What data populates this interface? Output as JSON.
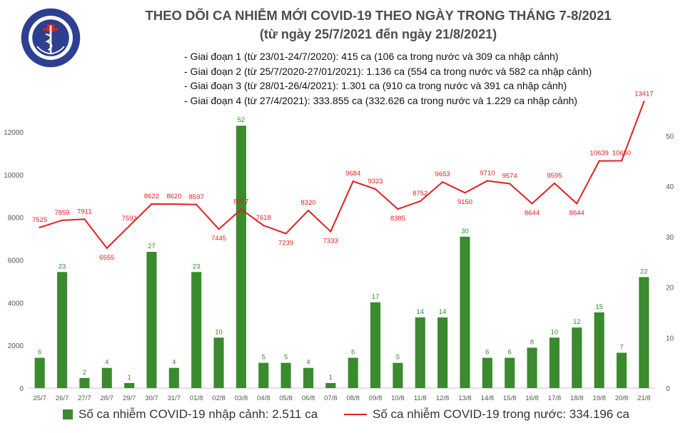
{
  "logo": {
    "top_text": "BỘ Y TẾ",
    "bottom_text": "MINISTRY OF HEALTH"
  },
  "title": "THEO DÕI CA NHIỄM MỚI COVID-19 THEO NGÀY TRONG THÁNG 7-8/2021",
  "subtitle": "(từ ngày 25/7/2021 đến ngày 21/8/2021)",
  "notes": [
    "- Giai đoạn 1 (từ 23/01-24/7/2020): 415 ca (106 ca trong nước và 309 ca nhập cảnh)",
    "- Giai đoạn 2 (từ 25/7/2020-27/01/2021): 1.136 ca (554 ca trong nước và 582 ca nhập cảnh)",
    "- Giai đoạn 3 (từ 28/01-26/4/2021): 1.301 ca (910 ca trong nước và 391 ca nhập cảnh)",
    "- Giai đoạn 4 (từ 27/4/2021): 333.855 ca (332.626 ca trong nước và 1.229 ca nhập cảnh)"
  ],
  "legend": {
    "bar": "Số ca nhiễm COVID-19 nhập cảnh: 2.511 ca",
    "line": "Số ca nhiễm COVID-19 trong nước: 334.196 ca"
  },
  "colors": {
    "bar": "#3a8a2e",
    "line": "#e02020",
    "bar_label": "#2e8b2e",
    "line_label": "#e02020",
    "axis_text": "#555555"
  },
  "chart_data": {
    "type": "bar",
    "categories": [
      "25/7",
      "26/7",
      "27/7",
      "28/7",
      "29/7",
      "30/7",
      "31/7",
      "01/8",
      "02/8",
      "03/8",
      "04/8",
      "05/8",
      "06/8",
      "07/8",
      "08/8",
      "09/8",
      "10/8",
      "11/8",
      "12/8",
      "13/8",
      "14/8",
      "15/8",
      "16/8",
      "17/8",
      "18/8",
      "19/8",
      "20/8",
      "21/8"
    ],
    "series": [
      {
        "name": "Số ca nhiễm COVID-19 nhập cảnh: 2.511 ca",
        "type": "bar",
        "axis": "right",
        "values": [
          6,
          23,
          2,
          4,
          1,
          27,
          4,
          23,
          10,
          52,
          5,
          5,
          4,
          1,
          6,
          17,
          5,
          14,
          14,
          30,
          6,
          6,
          8,
          10,
          12,
          15,
          7,
          22
        ]
      },
      {
        "name": "Số ca nhiễm COVID-19 trong nước: 334.196 ca",
        "type": "line",
        "axis": "left",
        "values": [
          7525,
          7859,
          7911,
          6555,
          7593,
          8622,
          8620,
          8597,
          7445,
          8377,
          7618,
          7239,
          8320,
          7333,
          9684,
          9323,
          8385,
          8752,
          9653,
          9150,
          9710,
          9574,
          8644,
          9595,
          8644,
          10639,
          10650,
          13417
        ]
      }
    ],
    "y_left": {
      "ticks": [
        "0",
        "2000",
        "4000",
        "6000",
        "8000",
        "10000",
        "12000"
      ],
      "ylim": [
        0,
        13000
      ]
    },
    "y_right": {
      "ticks": [
        "0",
        "10",
        "20",
        "30",
        "40",
        "50"
      ],
      "ylim": [
        0,
        55
      ]
    },
    "grid": false
  }
}
